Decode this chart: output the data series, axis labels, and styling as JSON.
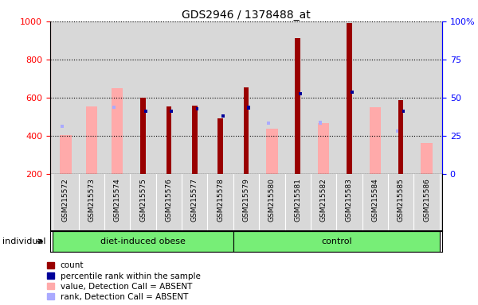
{
  "title": "GDS2946 / 1378488_at",
  "samples": [
    "GSM215572",
    "GSM215573",
    "GSM215574",
    "GSM215575",
    "GSM215576",
    "GSM215577",
    "GSM215578",
    "GSM215579",
    "GSM215580",
    "GSM215581",
    "GSM215582",
    "GSM215583",
    "GSM215584",
    "GSM215585",
    "GSM215586"
  ],
  "count": [
    null,
    null,
    null,
    600,
    555,
    558,
    490,
    655,
    null,
    910,
    null,
    990,
    null,
    585,
    null
  ],
  "percentile_rank": [
    null,
    null,
    null,
    530,
    530,
    540,
    505,
    548,
    null,
    620,
    null,
    630,
    null,
    530,
    null
  ],
  "value_absent": [
    405,
    555,
    650,
    null,
    null,
    null,
    null,
    null,
    435,
    null,
    465,
    null,
    550,
    null,
    360
  ],
  "rank_absent": [
    450,
    null,
    550,
    null,
    null,
    null,
    null,
    null,
    465,
    null,
    468,
    null,
    null,
    425,
    null
  ],
  "groups": {
    "diet-induced obese": [
      0,
      1,
      2,
      3,
      4,
      5,
      6
    ],
    "control": [
      7,
      8,
      9,
      10,
      11,
      12,
      13,
      14
    ]
  },
  "ylim_left": [
    200,
    1000
  ],
  "ylim_right": [
    0,
    100
  ],
  "color_count": "#990000",
  "color_rank": "#000099",
  "color_value_absent": "#ffaaaa",
  "color_rank_absent": "#aaaaff",
  "color_group": "#77ee77",
  "bg_color": "#d8d8d8",
  "tick_bg_color": "#d8d8d8"
}
